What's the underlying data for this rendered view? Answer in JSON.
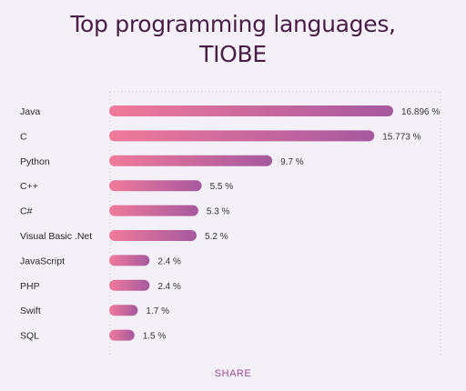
{
  "title_line1": "Top programming languages,",
  "title_line2": "TIOBE",
  "share_label": "SHARE",
  "colors": {
    "background": "#f3f0f7",
    "title": "#4a1d47",
    "bar_start": "#f07a9a",
    "bar_end": "#a6599f",
    "share": "#a04b96",
    "gridline": "#c9c2d0"
  },
  "chart_data": {
    "type": "bar",
    "orientation": "horizontal",
    "title": "Top programming languages, TIOBE",
    "categories": [
      "Java",
      "C",
      "Python",
      "C++",
      "C#",
      "Visual Basic .Net",
      "JavaScript",
      "PHP",
      "Swift",
      "SQL"
    ],
    "values": [
      16.896,
      15.773,
      9.7,
      5.5,
      5.3,
      5.2,
      2.4,
      2.4,
      1.7,
      1.5
    ],
    "value_labels": [
      "16.896 %",
      "15.773 %",
      "9.7 %",
      "5.5 %",
      "5.3 %",
      "5.2 %",
      "2.4 %",
      "2.4 %",
      "1.7 %",
      "1.5 %"
    ],
    "unit": "%",
    "xlabel": "",
    "ylabel": "",
    "grid": true
  }
}
